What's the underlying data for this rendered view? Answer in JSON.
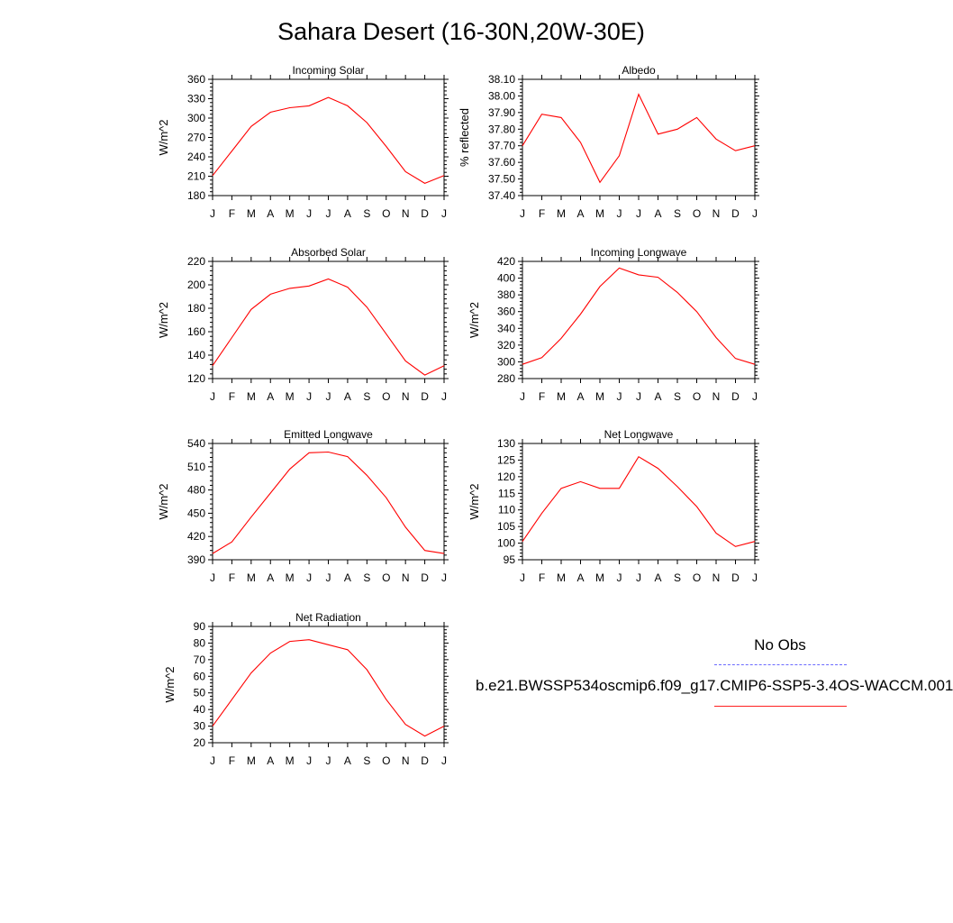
{
  "title": "Sahara Desert (16-30N,20W-30E)",
  "legend": {
    "obs_label": "No Obs",
    "obs_color": "#6a6aff",
    "case_label": "b.e21.BWSSP534oscmip6.f09_g17.CMIP6-SSP5-3.4OS-WACCM.001",
    "case_color": "#ff0000"
  },
  "chart_data": [
    {
      "type": "line",
      "title": "Incoming Solar",
      "ylabel": "W/m^2",
      "categories": [
        "J",
        "F",
        "M",
        "A",
        "M",
        "J",
        "J",
        "A",
        "S",
        "O",
        "N",
        "D",
        "J"
      ],
      "ylim": [
        180,
        360
      ],
      "yticks": [
        "180",
        "210",
        "240",
        "270",
        "300",
        "330",
        "360"
      ],
      "series": [
        {
          "color": "#ff0000",
          "values": [
            211,
            249,
            287,
            309,
            316,
            319,
            332,
            319,
            293,
            256,
            217,
            199,
            211
          ]
        }
      ]
    },
    {
      "type": "line",
      "title": "Albedo",
      "ylabel": "% reflected",
      "categories": [
        "J",
        "F",
        "M",
        "A",
        "M",
        "J",
        "J",
        "A",
        "S",
        "O",
        "N",
        "D",
        "J"
      ],
      "ylim": [
        37.4,
        38.1
      ],
      "yticks": [
        "37.40",
        "37.50",
        "37.60",
        "37.70",
        "37.80",
        "37.90",
        "38.00",
        "38.10"
      ],
      "series": [
        {
          "color": "#ff0000",
          "values": [
            37.7,
            37.89,
            37.87,
            37.72,
            37.48,
            37.64,
            38.01,
            37.77,
            37.8,
            37.87,
            37.74,
            37.67,
            37.7
          ]
        }
      ]
    },
    {
      "type": "line",
      "title": "Absorbed Solar",
      "ylabel": "W/m^2",
      "categories": [
        "J",
        "F",
        "M",
        "A",
        "M",
        "J",
        "J",
        "A",
        "S",
        "O",
        "N",
        "D",
        "J"
      ],
      "ylim": [
        120,
        220
      ],
      "yticks": [
        "120",
        "140",
        "160",
        "180",
        "200",
        "220"
      ],
      "series": [
        {
          "color": "#ff0000",
          "values": [
            131,
            155,
            179,
            192,
            197,
            199,
            205,
            198,
            181,
            158,
            135,
            123,
            131
          ]
        }
      ]
    },
    {
      "type": "line",
      "title": "Incoming Longwave",
      "ylabel": "W/m^2",
      "categories": [
        "J",
        "F",
        "M",
        "A",
        "M",
        "J",
        "J",
        "A",
        "S",
        "O",
        "N",
        "D",
        "J"
      ],
      "ylim": [
        280,
        420
      ],
      "yticks": [
        "280",
        "300",
        "320",
        "340",
        "360",
        "380",
        "400",
        "420"
      ],
      "series": [
        {
          "color": "#ff0000",
          "values": [
            297,
            305,
            328,
            357,
            390,
            412,
            404,
            401,
            383,
            360,
            329,
            304,
            297
          ]
        }
      ]
    },
    {
      "type": "line",
      "title": "Emitted Longwave",
      "ylabel": "W/m^2",
      "categories": [
        "J",
        "F",
        "M",
        "A",
        "M",
        "J",
        "J",
        "A",
        "S",
        "O",
        "N",
        "D",
        "J"
      ],
      "ylim": [
        390,
        540
      ],
      "yticks": [
        "390",
        "420",
        "450",
        "480",
        "510",
        "540"
      ],
      "series": [
        {
          "color": "#ff0000",
          "values": [
            398,
            413,
            445,
            476,
            507,
            528,
            529,
            523,
            499,
            470,
            432,
            402,
            398
          ]
        }
      ]
    },
    {
      "type": "line",
      "title": "Net Longwave",
      "ylabel": "W/m^2",
      "categories": [
        "J",
        "F",
        "M",
        "A",
        "M",
        "J",
        "J",
        "A",
        "S",
        "O",
        "N",
        "D",
        "J"
      ],
      "ylim": [
        95,
        130
      ],
      "yticks": [
        "95",
        "100",
        "105",
        "110",
        "115",
        "120",
        "125",
        "130"
      ],
      "series": [
        {
          "color": "#ff0000",
          "values": [
            100.5,
            109,
            116.5,
            118.5,
            116.5,
            116.5,
            126,
            122.5,
            117,
            111,
            103,
            99,
            100.5
          ]
        }
      ]
    },
    {
      "type": "line",
      "title": "Net Radiation",
      "ylabel": "W/m^2",
      "categories": [
        "J",
        "F",
        "M",
        "A",
        "M",
        "J",
        "J",
        "A",
        "S",
        "O",
        "N",
        "D",
        "J"
      ],
      "ylim": [
        20,
        90
      ],
      "yticks": [
        "20",
        "30",
        "40",
        "50",
        "60",
        "70",
        "80",
        "90"
      ],
      "series": [
        {
          "color": "#ff0000",
          "values": [
            30,
            46,
            62,
            74,
            81,
            82,
            79,
            76,
            64,
            46,
            31,
            24,
            30
          ]
        }
      ]
    }
  ]
}
